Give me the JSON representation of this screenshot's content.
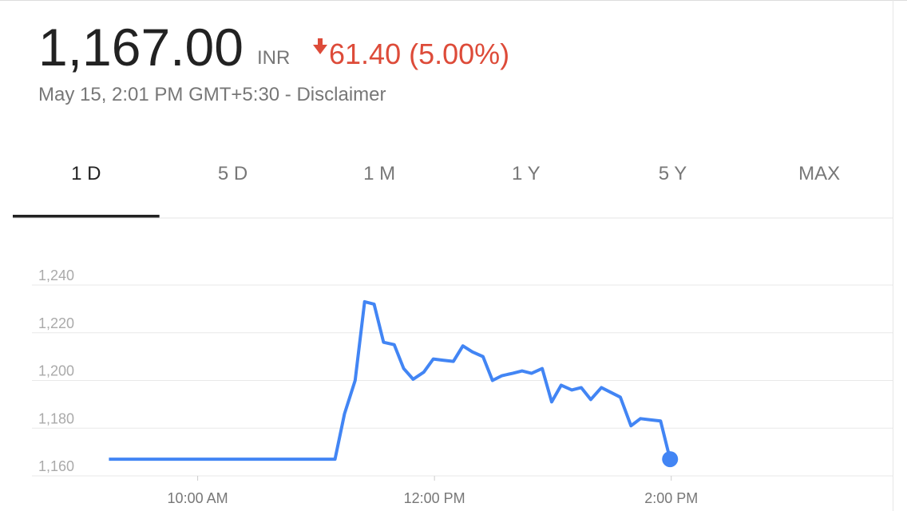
{
  "header": {
    "price": "1,167.00",
    "currency": "INR",
    "change": "61.40",
    "change_percent": "(5.00%)",
    "timestamp": "May 15, 2:01 PM GMT+5:30 - ",
    "disclaimer": "Disclaimer"
  },
  "tabs": [
    "1 D",
    "5 D",
    "1 M",
    "1 Y",
    "5 Y",
    "MAX"
  ],
  "selected_tab": 0,
  "chart_data": {
    "type": "line",
    "x": [
      9.25,
      11.16,
      11.24,
      11.33,
      11.41,
      11.49,
      11.57,
      11.66,
      11.74,
      11.82,
      11.91,
      11.99,
      12.07,
      12.16,
      12.24,
      12.32,
      12.41,
      12.49,
      12.57,
      12.66,
      12.74,
      12.82,
      12.91,
      12.99,
      13.07,
      13.16,
      13.24,
      13.32,
      13.41,
      13.49,
      13.57,
      13.66,
      13.74,
      13.82,
      13.91,
      13.99
    ],
    "series": [
      {
        "name": "Price",
        "color": "#4285f4",
        "values": [
          1167,
          1167,
          1186,
          1200,
          1233,
          1232,
          1216,
          1215,
          1205,
          1200.5,
          1203.5,
          1209,
          1208.5,
          1208,
          1214.5,
          1212,
          1210,
          1200,
          1202,
          1203,
          1204,
          1203,
          1205,
          1191,
          1198,
          1196,
          1197,
          1192,
          1197,
          1195,
          1193,
          1181,
          1184,
          1183.5,
          1183,
          1167
        ]
      }
    ],
    "xlim": [
      8.6,
      15.87
    ],
    "xticks": [
      {
        "value": 10,
        "label": "10:00 AM"
      },
      {
        "value": 12,
        "label": "12:00 PM"
      },
      {
        "value": 14,
        "label": "2:00 PM"
      }
    ],
    "ylim": [
      1160,
      1240
    ],
    "yticks": [
      {
        "value": 1160,
        "label": "1,160"
      },
      {
        "value": 1180,
        "label": "1,180"
      },
      {
        "value": 1200,
        "label": "1,200"
      },
      {
        "value": 1220,
        "label": "1,220"
      },
      {
        "value": 1240,
        "label": "1,240"
      }
    ],
    "grid": true
  }
}
